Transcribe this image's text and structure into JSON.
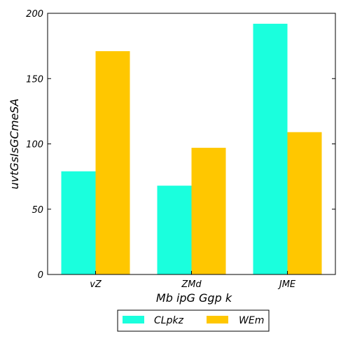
{
  "chart_data": {
    "type": "bar",
    "title": "",
    "xlabel": "Mb ipG Ggp  k",
    "ylabel": "uvtGsIsGCmeSA",
    "categories": [
      "vZ",
      "ZMd",
      "JME"
    ],
    "series": [
      {
        "name": "CLpkz",
        "color": "#1affdd",
        "values": [
          79,
          68,
          192
        ]
      },
      {
        "name": "WEm",
        "color": "#ffc700",
        "values": [
          171,
          97,
          109
        ]
      }
    ],
    "ylim": [
      0,
      200
    ],
    "yticks": [
      0,
      50,
      100,
      150,
      200
    ],
    "grid": false,
    "legend_position": "bottom-center"
  }
}
